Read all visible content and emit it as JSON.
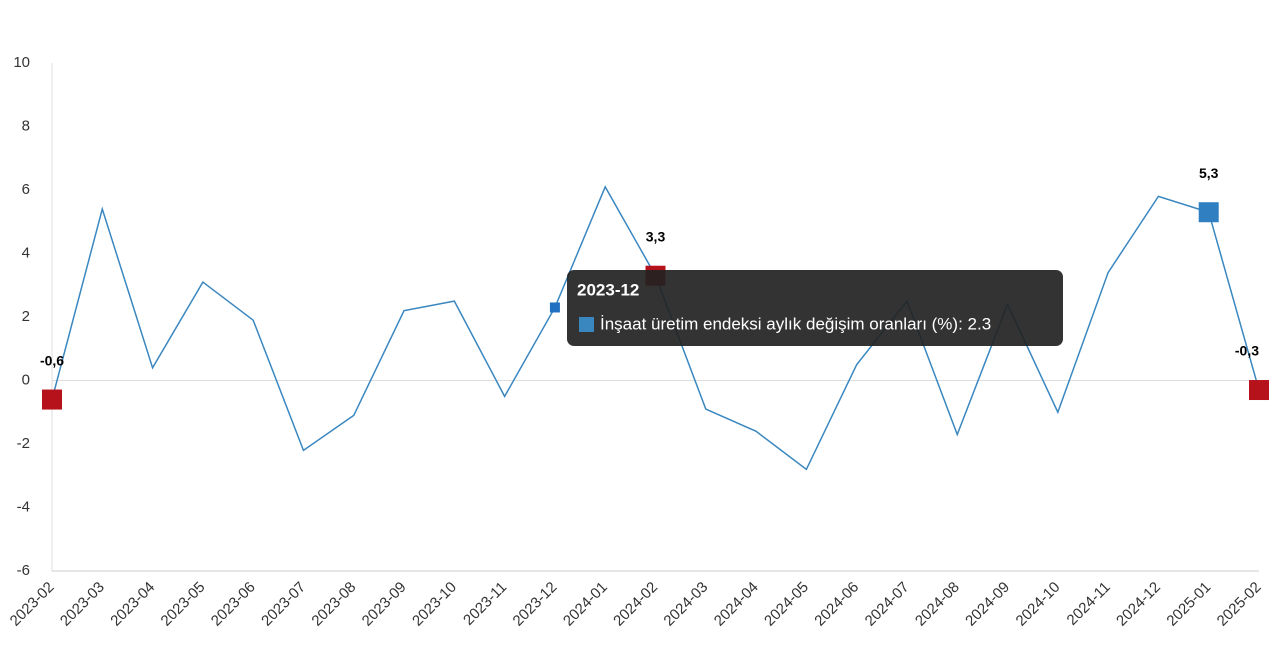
{
  "chart_data": {
    "type": "line",
    "categories": [
      "2023-02",
      "2023-03",
      "2023-04",
      "2023-05",
      "2023-06",
      "2023-07",
      "2023-08",
      "2023-09",
      "2023-10",
      "2023-11",
      "2023-12",
      "2024-01",
      "2024-02",
      "2024-03",
      "2024-04",
      "2024-05",
      "2024-06",
      "2024-07",
      "2024-08",
      "2024-09",
      "2024-10",
      "2024-11",
      "2024-12",
      "2025-01",
      "2025-02"
    ],
    "series": [
      {
        "name": "İnşaat üretim endeksi aylık değişim oranları (%)",
        "color": "#3a87c0",
        "values": [
          -0.6,
          5.4,
          0.4,
          3.1,
          1.9,
          -2.2,
          -1.1,
          2.2,
          2.5,
          -0.5,
          2.3,
          6.1,
          3.3,
          -0.9,
          -1.6,
          -2.8,
          0.5,
          2.5,
          -1.7,
          2.4,
          -1.0,
          3.4,
          5.8,
          5.3,
          -0.3
        ],
        "value_labels": [
          "-0,6",
          null,
          null,
          null,
          null,
          null,
          null,
          null,
          null,
          null,
          null,
          null,
          "3,3",
          null,
          null,
          null,
          null,
          null,
          null,
          null,
          null,
          null,
          null,
          "5,3",
          "-0,3"
        ],
        "marker_colors": [
          "#b5121b",
          null,
          null,
          null,
          null,
          null,
          null,
          null,
          null,
          null,
          null,
          null,
          "#b5121b",
          null,
          null,
          null,
          null,
          null,
          null,
          null,
          null,
          null,
          null,
          "#2f7fc1",
          "#b5121b"
        ]
      }
    ],
    "ylim": [
      -6,
      10
    ],
    "yticks": [
      -6,
      -4,
      -2,
      0,
      2,
      4,
      6,
      8,
      10
    ],
    "grid": false,
    "tooltip": {
      "title": "2023-12",
      "text": "İnşaat üretim endeksi aylık değişim oranları (%): 2.3"
    }
  }
}
